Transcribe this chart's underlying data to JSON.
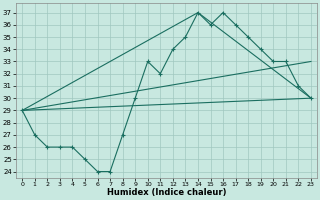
{
  "xlabel": "Humidex (Indice chaleur)",
  "bg_color": "#c8e8e0",
  "line_color": "#1a6e60",
  "grid_color": "#a0c8c0",
  "xlim": [
    -0.5,
    23.5
  ],
  "ylim": [
    23.5,
    37.8
  ],
  "yticks": [
    24,
    25,
    26,
    27,
    28,
    29,
    30,
    31,
    32,
    33,
    34,
    35,
    36,
    37
  ],
  "xticks": [
    0,
    1,
    2,
    3,
    4,
    5,
    6,
    7,
    8,
    9,
    10,
    11,
    12,
    13,
    14,
    15,
    16,
    17,
    18,
    19,
    20,
    21,
    22,
    23
  ],
  "line1_x": [
    0,
    1,
    2,
    3,
    4,
    5,
    6,
    7,
    8,
    9,
    10,
    11,
    12,
    13,
    14,
    15,
    16,
    17,
    18,
    19,
    20,
    21,
    22,
    23
  ],
  "line1_y": [
    29,
    27,
    26,
    26,
    26,
    25,
    24,
    24,
    27,
    30,
    33,
    32,
    34,
    35,
    37,
    36,
    37,
    36,
    35,
    34,
    33,
    33,
    31,
    30
  ],
  "line2_x": [
    0,
    23
  ],
  "line2_y": [
    29,
    30
  ],
  "line3_x": [
    0,
    23
  ],
  "line3_y": [
    29,
    33
  ],
  "line4_x": [
    0,
    14,
    23
  ],
  "line4_y": [
    29,
    37,
    30
  ]
}
